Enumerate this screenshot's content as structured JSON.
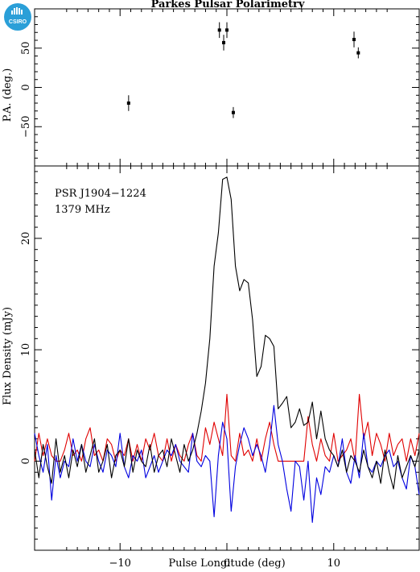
{
  "logo": {
    "text": "CSIRO",
    "color": "#2a9fd8"
  },
  "chart_data": [
    {
      "type": "scatter",
      "title": "Parkes Pulsar Polarimetry",
      "ylabel": "P.A. (deg.)",
      "xlim": [
        -18,
        18
      ],
      "ylim": [
        -100,
        100
      ],
      "yticks": [
        -50,
        0,
        50
      ],
      "points": [
        {
          "x": -9.2,
          "y": -20,
          "err": 10
        },
        {
          "x": -0.7,
          "y": 73,
          "err": 10
        },
        {
          "x": -0.3,
          "y": 57,
          "err": 10
        },
        {
          "x": 0.0,
          "y": 73,
          "err": 10
        },
        {
          "x": 0.6,
          "y": -32,
          "err": 7
        },
        {
          "x": 11.9,
          "y": 61,
          "err": 10
        },
        {
          "x": 12.3,
          "y": 44,
          "err": 7
        }
      ]
    },
    {
      "type": "line",
      "xlabel": "Pulse Longitude (deg)",
      "ylabel": "Flux Density (mJy)",
      "xlim": [
        -18,
        18
      ],
      "ylim": [
        -8,
        26.5
      ],
      "xticks": [
        -10,
        0,
        10
      ],
      "yticks": [
        0,
        10,
        20
      ],
      "annotations": [
        "PSR J1904−1224",
        "1379 MHz"
      ],
      "x": [
        -18,
        -17.6,
        -17.2,
        -16.8,
        -16.4,
        -16,
        -15.6,
        -15.2,
        -14.8,
        -14.4,
        -14,
        -13.6,
        -13.2,
        -12.8,
        -12.4,
        -12,
        -11.6,
        -11.2,
        -10.8,
        -10.4,
        -10,
        -9.6,
        -9.2,
        -8.8,
        -8.4,
        -8,
        -7.6,
        -7.2,
        -6.8,
        -6.4,
        -6,
        -5.6,
        -5.2,
        -4.8,
        -4.4,
        -4,
        -3.6,
        -3.2,
        -2.8,
        -2.4,
        -2,
        -1.6,
        -1.2,
        -0.8,
        -0.4,
        0,
        0.4,
        0.8,
        1.2,
        1.6,
        2,
        2.4,
        2.8,
        3.2,
        3.6,
        4,
        4.4,
        4.8,
        5.2,
        5.6,
        6,
        6.4,
        6.8,
        7.2,
        7.6,
        8,
        8.4,
        8.8,
        9.2,
        9.6,
        10,
        10.4,
        10.8,
        11.2,
        11.6,
        12,
        12.4,
        12.8,
        13.2,
        13.6,
        14,
        14.4,
        14.8,
        15.2,
        15.6,
        16,
        16.4,
        16.8,
        17.2,
        17.6,
        18
      ],
      "series": [
        {
          "color": "#000000",
          "values": [
            1.0,
            -1.5,
            1.5,
            -0.5,
            -2.0,
            2.0,
            -1.0,
            0.5,
            -1.5,
            1.0,
            -0.5,
            1.5,
            -1.0,
            0.5,
            2.0,
            -1.0,
            0.0,
            1.5,
            -1.5,
            0.5,
            1.0,
            -0.5,
            2.0,
            -1.0,
            1.0,
            0.0,
            -0.5,
            1.5,
            -1.0,
            0.5,
            1.0,
            -0.5,
            2.0,
            0.5,
            -1.0,
            1.5,
            0.0,
            1.0,
            2.5,
            4.5,
            7.0,
            11.0,
            17.5,
            20.5,
            25.3,
            25.5,
            23.5,
            17.5,
            15.3,
            16.3,
            16.0,
            12.7,
            7.6,
            8.5,
            11.3,
            11.0,
            10.3,
            4.7,
            5.2,
            5.8,
            3.0,
            3.5,
            4.7,
            3.2,
            3.5,
            5.3,
            2.0,
            4.5,
            2.0,
            1.0,
            0.5,
            -0.5,
            1.0,
            -1.0,
            0.5,
            0.0,
            -1.0,
            1.0,
            -0.5,
            -1.5,
            0.0,
            -2.0,
            1.0,
            -1.0,
            -2.5,
            0.5,
            -1.5,
            -0.5,
            0.5,
            -0.5,
            1.0
          ]
        },
        {
          "color": "#e00000",
          "values": [
            0.0,
            2.5,
            0.5,
            2.0,
            0.5,
            0.0,
            0.0,
            1.0,
            2.5,
            0.5,
            1.0,
            0.0,
            2.0,
            3.0,
            0.5,
            1.0,
            0.0,
            2.0,
            1.5,
            0.0,
            1.0,
            0.5,
            2.0,
            0.0,
            1.5,
            0.0,
            2.0,
            1.0,
            2.5,
            0.5,
            0.0,
            2.0,
            0.0,
            1.5,
            0.5,
            0.0,
            1.5,
            2.5,
            0.5,
            0.0,
            3.0,
            1.5,
            3.5,
            2.0,
            0.5,
            6.0,
            0.5,
            0.0,
            2.5,
            0.5,
            1.0,
            0.0,
            2.0,
            0.0,
            2.0,
            3.5,
            1.5,
            0.0,
            0.0,
            0.0,
            0.0,
            0.0,
            0.0,
            0.0,
            4.0,
            1.5,
            0.0,
            2.0,
            0.5,
            0.0,
            2.5,
            0.0,
            0.5,
            1.0,
            2.0,
            0.0,
            6.0,
            2.0,
            3.5,
            0.5,
            2.5,
            1.5,
            0.0,
            2.5,
            0.5,
            1.5,
            2.0,
            0.0,
            2.0,
            0.5,
            2.5
          ]
        },
        {
          "color": "#0000e0",
          "values": [
            2.5,
            0.5,
            -1.0,
            1.5,
            -3.5,
            0.5,
            -1.5,
            0.0,
            -0.5,
            2.0,
            0.0,
            1.5,
            0.0,
            -0.5,
            1.5,
            0.0,
            -1.0,
            1.0,
            0.5,
            -0.5,
            2.5,
            -0.5,
            -1.5,
            0.5,
            0.0,
            1.0,
            -1.5,
            -0.5,
            0.5,
            -1.0,
            0.0,
            1.0,
            0.5,
            1.5,
            0.0,
            -0.5,
            -1.0,
            2.5,
            0.0,
            -0.5,
            0.5,
            0.0,
            -5.0,
            0.5,
            3.5,
            2.0,
            -4.5,
            -0.5,
            1.5,
            3.0,
            2.0,
            0.5,
            1.5,
            0.5,
            -1.0,
            1.5,
            5.0,
            1.5,
            0.0,
            -2.5,
            -4.5,
            0.0,
            -0.5,
            -3.5,
            0.0,
            -5.5,
            -1.5,
            -3.0,
            -0.5,
            -1.0,
            0.5,
            -0.5,
            2.0,
            -1.0,
            -2.0,
            0.5,
            -1.5,
            2.5,
            -0.5,
            -1.0,
            0.0,
            -0.5,
            0.5,
            1.0,
            -0.5,
            0.0,
            -1.5,
            -2.5,
            0.5,
            -0.5,
            -3.0
          ]
        }
      ]
    }
  ]
}
